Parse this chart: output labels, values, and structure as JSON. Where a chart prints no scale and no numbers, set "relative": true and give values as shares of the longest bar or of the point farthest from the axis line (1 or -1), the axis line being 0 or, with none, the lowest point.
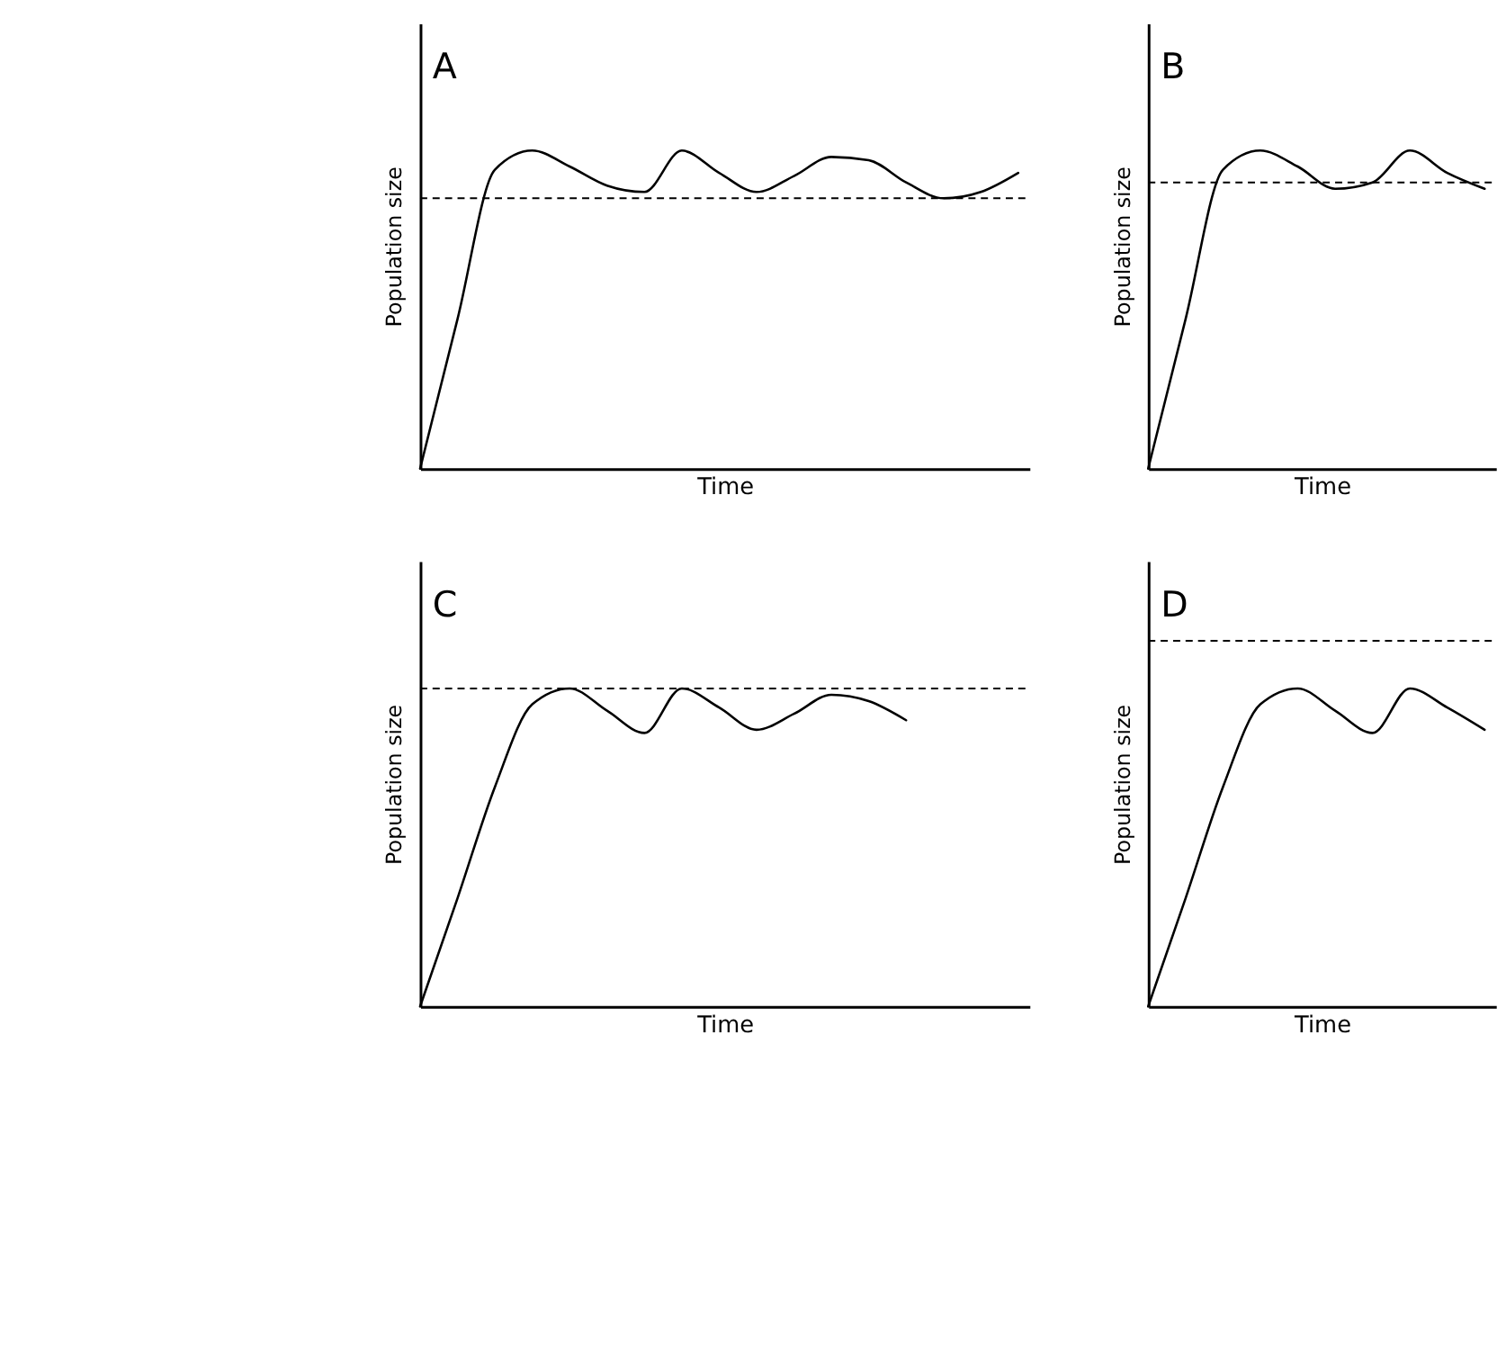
{
  "chart_data": [
    {
      "type": "line",
      "title": "A",
      "xlabel": "Time",
      "ylabel": "Population size",
      "relative": true,
      "grid": false,
      "marker": "none",
      "line_style": "solid",
      "categories": [
        null,
        null,
        null,
        null,
        null,
        null,
        null,
        null,
        null,
        null,
        null,
        null,
        null,
        null,
        null,
        null,
        null
      ],
      "series": [
        {
          "color": "#000000",
          "values": [
            0,
            0.47,
            0.94,
            1,
            0.95,
            0.89,
            0.87,
            1,
            0.93,
            0.87,
            0.92,
            0.98,
            0.97,
            0.9,
            0.85,
            0.87,
            0.93
          ]
        }
      ],
      "ref_lines": [
        {
          "axis": "y",
          "value": 0.85,
          "color": "#000000",
          "line_style": "dashed"
        }
      ]
    },
    {
      "type": "line",
      "title": "B",
      "xlabel": "Time",
      "ylabel": "Population size",
      "relative": true,
      "grid": false,
      "marker": "none",
      "line_style": "solid",
      "categories": [
        null,
        null,
        null,
        null,
        null,
        null,
        null,
        null,
        null,
        null
      ],
      "series": [
        {
          "color": "#000000",
          "values": [
            0,
            0.47,
            0.94,
            1,
            0.95,
            0.88,
            0.9,
            1,
            0.93,
            0.88
          ]
        }
      ],
      "ref_lines": [
        {
          "axis": "y",
          "value": 0.9,
          "color": "#000000",
          "line_style": "dashed"
        }
      ]
    },
    {
      "type": "line",
      "title": "C",
      "xlabel": "Time",
      "ylabel": "Population size",
      "relative": true,
      "grid": false,
      "marker": "none",
      "line_style": "solid",
      "categories": [
        null,
        null,
        null,
        null,
        null,
        null,
        null,
        null,
        null,
        null,
        null,
        null,
        null,
        null,
        null,
        null,
        null
      ],
      "series": [
        {
          "color": "#000000",
          "values": [
            0,
            0.34,
            0.69,
            0.95,
            1,
            0.93,
            0.86,
            1,
            0.94,
            0.87,
            0.92,
            0.98,
            0.96,
            0.9,
            null,
            null,
            null
          ]
        }
      ],
      "ref_lines": [
        {
          "axis": "y",
          "value": 1,
          "color": "#000000",
          "line_style": "dashed"
        }
      ]
    },
    {
      "type": "line",
      "title": "D",
      "xlabel": "Time",
      "ylabel": "Population size",
      "relative": true,
      "grid": false,
      "marker": "none",
      "line_style": "solid",
      "categories": [
        null,
        null,
        null,
        null,
        null,
        null,
        null,
        null,
        null,
        null
      ],
      "series": [
        {
          "color": "#000000",
          "values": [
            0,
            0.34,
            0.69,
            0.95,
            1,
            0.93,
            0.86,
            1,
            0.94,
            0.87
          ]
        }
      ],
      "ref_lines": [
        {
          "axis": "y",
          "value": 1.15,
          "color": "#000000",
          "line_style": "dashed"
        }
      ]
    }
  ]
}
